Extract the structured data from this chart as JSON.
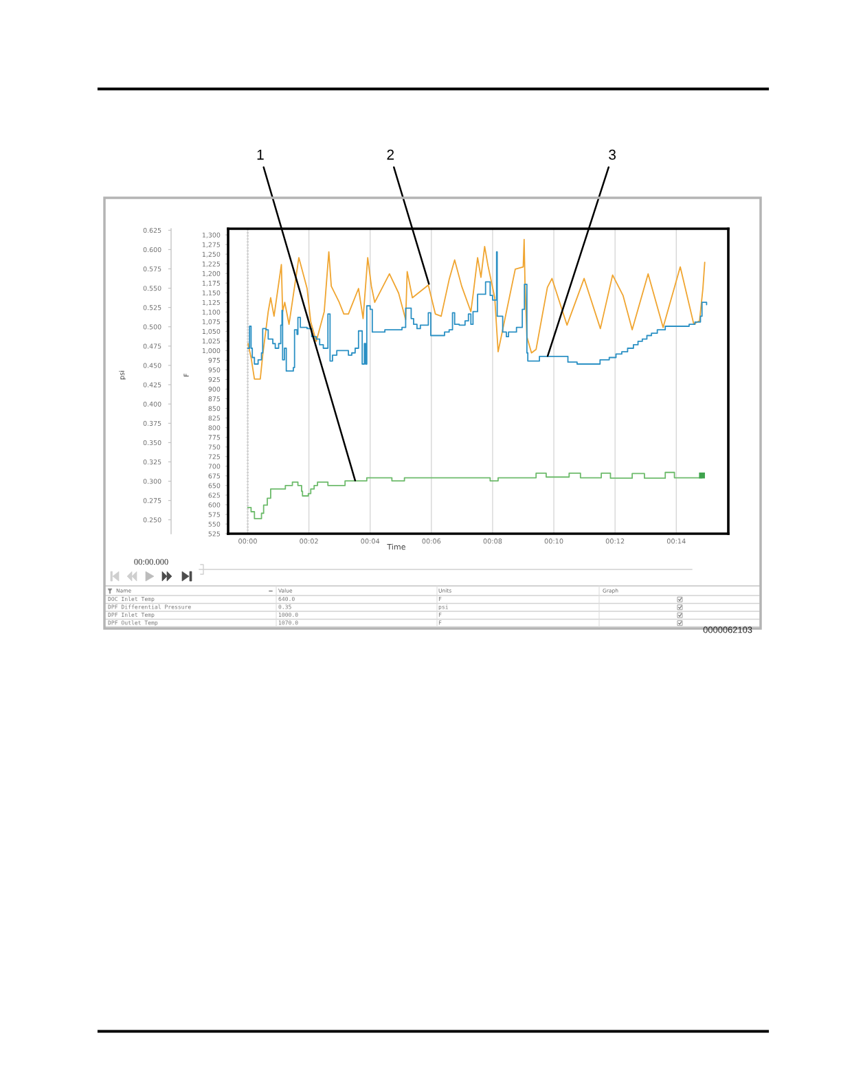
{
  "chart_data": [
    {
      "type": "line",
      "xlabel": "Time",
      "ylabel": "F",
      "y2label": "psi",
      "xlim": [
        -0.64,
        15.7
      ],
      "ylim": [
        525,
        1316
      ],
      "y2lim": [
        0.232,
        0.627
      ],
      "xticks": [
        {
          "value": 0,
          "label": "00:00"
        },
        {
          "value": 2,
          "label": "00:02"
        },
        {
          "value": 4,
          "label": "00:04"
        },
        {
          "value": 6,
          "label": "00:06"
        },
        {
          "value": 8,
          "label": "00:08"
        },
        {
          "value": 10,
          "label": "00:10"
        },
        {
          "value": 12,
          "label": "00:12"
        },
        {
          "value": 14,
          "label": "00:14"
        }
      ],
      "yticks": [
        525,
        550,
        575,
        600,
        625,
        650,
        675,
        700,
        725,
        750,
        775,
        800,
        825,
        850,
        875,
        900,
        925,
        950,
        975,
        {
          "value": 1000,
          "label": "1,000"
        },
        {
          "value": 1025,
          "label": "1,025"
        },
        {
          "value": 1050,
          "label": "1,050"
        },
        {
          "value": 1075,
          "label": "1,075"
        },
        {
          "value": 1100,
          "label": "1,100"
        },
        {
          "value": 1125,
          "label": "1,125"
        },
        {
          "value": 1150,
          "label": "1,150"
        },
        {
          "value": 1175,
          "label": "1,175"
        },
        {
          "value": 1200,
          "label": "1,200"
        },
        {
          "value": 1225,
          "label": "1,225"
        },
        {
          "value": 1250,
          "label": "1,250"
        },
        {
          "value": 1275,
          "label": "1,275"
        },
        {
          "value": 1300,
          "label": "1,300"
        }
      ],
      "y2ticks": [
        {
          "value": 0.25,
          "label": "0.250"
        },
        0.275,
        {
          "value": 0.3,
          "label": "0.300"
        },
        0.325,
        {
          "value": 0.35,
          "label": "0.350"
        },
        0.375,
        {
          "value": 0.4,
          "label": "0.400"
        },
        0.425,
        {
          "value": 0.45,
          "label": "0.450"
        },
        0.475,
        {
          "value": 0.5,
          "label": "0.500"
        },
        0.525,
        {
          "value": 0.55,
          "label": "0.550"
        },
        0.575,
        {
          "value": 0.6,
          "label": "0.600"
        },
        0.625
      ],
      "grid": "x",
      "ref_lines": [
        {
          "axis": "x",
          "value": 0,
          "line_style": "dotted",
          "color": "#666666"
        }
      ],
      "annotations": [
        {
          "text": "1",
          "x": 3.51,
          "y": 663
        },
        {
          "text": "2",
          "x": 5.92,
          "y": 1173
        },
        {
          "text": "3",
          "x": 9.8,
          "y": 986
        },
        "0000062103"
      ],
      "series": [
        {
          "type": "step",
          "color": "#6dbb6b",
          "x": [
            0,
            0.11,
            0.22,
            0.45,
            0.52,
            0.64,
            0.75,
            1.23,
            1.46,
            1.64,
            1.76,
            1.79,
            1.98,
            2.06,
            2.17,
            2.28,
            2.62,
            3.18,
            3.89,
            4.71,
            5.12,
            7.92,
            8.18,
            9.42,
            9.75,
            10.5,
            10.87,
            11.55,
            11.85,
            12.56,
            12.96,
            13.64,
            13.94,
            14.84
          ],
          "values": [
            593,
            582,
            564,
            578,
            599,
            617,
            641,
            650,
            659,
            650,
            635,
            623,
            629,
            641,
            650,
            659,
            650,
            662,
            670,
            662,
            670,
            662,
            670,
            682,
            672,
            682,
            670,
            682,
            669,
            681,
            669,
            684,
            670,
            670
          ]
        },
        {
          "type": "line",
          "color": "#f0a530",
          "x": [
            0.01,
            0.11,
            0.22,
            0.41,
            0.49,
            0.67,
            0.75,
            0.86,
            1.1,
            1.14,
            1.21,
            1.35,
            1.67,
            1.94,
            2.06,
            2.24,
            2.5,
            2.65,
            2.73,
            2.99,
            3.14,
            3.29,
            3.62,
            3.77,
            3.92,
            4.04,
            4.15,
            4.63,
            4.93,
            5.16,
            5.21,
            5.38,
            5.9,
            6.13,
            6.32,
            6.58,
            6.76,
            6.99,
            7.29,
            7.36,
            7.51,
            7.62,
            7.74,
            7.85,
            8.07,
            8.18,
            8.74,
            9.0,
            9.03,
            9.06,
            9.12,
            9.27,
            9.42,
            9.79,
            9.94,
            10.43,
            10.99,
            11.52,
            11.92,
            12.26,
            12.56,
            13.08,
            13.57,
            14.13,
            14.57,
            14.76,
            14.87,
            14.93
          ],
          "values": [
            1018,
            982,
            926,
            926,
            988,
            1101,
            1137,
            1089,
            1223,
            1101,
            1125,
            1068,
            1241,
            1161,
            1074,
            1024,
            1101,
            1256,
            1167,
            1125,
            1095,
            1095,
            1161,
            1083,
            1241,
            1167,
            1125,
            1199,
            1149,
            1080,
            1205,
            1137,
            1170,
            1095,
            1089,
            1184,
            1235,
            1167,
            1101,
            1143,
            1241,
            1190,
            1270,
            1220,
            1137,
            997,
            1211,
            1217,
            1288,
            1167,
            1036,
            994,
            1003,
            1164,
            1187,
            1066,
            1187,
            1057,
            1196,
            1143,
            1054,
            1199,
            1060,
            1217,
            1069,
            1077,
            1161,
            1229
          ]
        },
        {
          "type": "step",
          "color": "#2a90c4",
          "x": [
            0,
            0.06,
            0.11,
            0.15,
            0.22,
            0.34,
            0.45,
            0.49,
            0.6,
            0.67,
            0.82,
            0.9,
            1.01,
            1.08,
            1.12,
            1.14,
            1.2,
            1.26,
            1.49,
            1.53,
            1.61,
            1.64,
            1.72,
            1.94,
            2.09,
            2.24,
            2.35,
            2.47,
            2.62,
            2.69,
            2.77,
            2.91,
            3.29,
            3.4,
            3.51,
            3.62,
            3.74,
            3.81,
            3.85,
            3.89,
            4.0,
            4.07,
            4.48,
            5.04,
            5.16,
            5.34,
            5.42,
            5.53,
            5.64,
            5.9,
            5.98,
            6.43,
            6.58,
            6.69,
            6.76,
            6.91,
            7.1,
            7.21,
            7.29,
            7.36,
            7.51,
            7.77,
            7.92,
            8.0,
            8.13,
            8.15,
            8.33,
            8.45,
            8.52,
            8.78,
            8.97,
            9.04,
            9.12,
            9.15,
            9.53,
            10.46,
            10.76,
            11.51,
            11.81,
            12.03,
            12.22,
            12.41,
            12.6,
            12.75,
            12.89,
            13.04,
            13.19,
            13.38,
            13.64,
            14.42,
            14.61,
            14.79,
            14.84,
            14.99
          ],
          "values": [
            1006,
            1063,
            1006,
            982,
            965,
            976,
            994,
            1057,
            1054,
            1030,
            1018,
            1006,
            1018,
            1066,
            1104,
            976,
            1006,
            947,
            956,
            1054,
            1042,
            1086,
            1060,
            1057,
            1036,
            1030,
            1015,
            1006,
            1095,
            973,
            988,
            1000,
            988,
            994,
            1006,
            1051,
            965,
            1018,
            965,
            1116,
            1107,
            1048,
            1054,
            1060,
            1110,
            1083,
            1068,
            1057,
            1066,
            1098,
            1039,
            1048,
            1054,
            1098,
            1068,
            1066,
            1077,
            1095,
            1068,
            1101,
            1146,
            1178,
            1143,
            1131,
            1256,
            1089,
            1048,
            1036,
            1048,
            1060,
            1107,
            1172,
            994,
            973,
            985,
            970,
            965,
            976,
            982,
            991,
            997,
            1006,
            1015,
            1024,
            1030,
            1039,
            1045,
            1054,
            1063,
            1068,
            1074,
            1089,
            1125,
            1119
          ]
        },
        {
          "type": "scatter",
          "color": "#3fa34d",
          "marker": "square",
          "x": [
            14.84
          ],
          "values": [
            676
          ]
        }
      ]
    },
    {
      "type": "other",
      "categories": [
        "Name",
        "Value",
        "Units",
        "Graph"
      ],
      "y_categories": [
        "DOC Inlet Temp",
        "DPF Differential Pressure",
        "DPF Inlet Temp",
        "DPF Outlet Temp"
      ],
      "cell_labels": [
        [
          "640.0",
          "F"
        ],
        [
          "0.35",
          "psi"
        ],
        [
          "1000.0",
          "F"
        ],
        [
          "1070.0",
          "F"
        ]
      ],
      "annotations": [
        "00:00.000"
      ]
    }
  ]
}
